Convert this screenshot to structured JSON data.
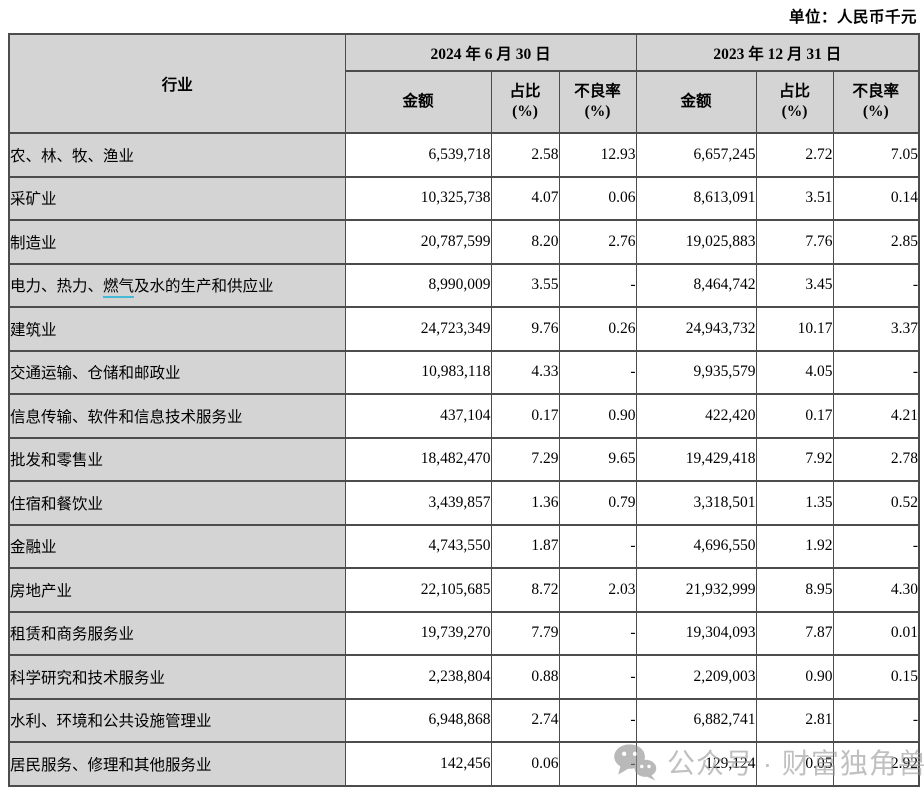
{
  "unit_label": "单位：人民币千元",
  "watermark": {
    "text": "公众号 · 财富独角兽",
    "icon": "wechat-icon",
    "color": "#9b9b9b"
  },
  "colors": {
    "header_bg": "#d4d4d4",
    "border": "#4c4c4c",
    "gas_underline": "#46b9d4"
  },
  "table": {
    "header": {
      "industry": "行业",
      "groups": [
        {
          "label": "2024 年 6 月 30 日",
          "columns": [
            {
              "title": "金额",
              "sub": ""
            },
            {
              "title": "占比",
              "sub": "(%)"
            },
            {
              "title": "不良率",
              "sub": "(%)"
            }
          ]
        },
        {
          "label": "2023 年 12 月 31 日",
          "columns": [
            {
              "title": "金额",
              "sub": ""
            },
            {
              "title": "占比",
              "sub": "(%)"
            },
            {
              "title": "不良率",
              "sub": "(%)"
            }
          ]
        }
      ]
    },
    "rows": [
      {
        "industry": "农、林、牧、渔业",
        "values": [
          "6,539,718",
          "2.58",
          "12.93",
          "6,657,245",
          "2.72",
          "7.05"
        ]
      },
      {
        "industry": "采矿业",
        "values": [
          "10,325,738",
          "4.07",
          "0.06",
          "8,613,091",
          "3.51",
          "0.14"
        ]
      },
      {
        "industry": "制造业",
        "values": [
          "20,787,599",
          "8.20",
          "2.76",
          "19,025,883",
          "7.76",
          "2.85"
        ]
      },
      {
        "industry": "电力、热力、燃气及水的生产和供应业",
        "parts": {
          "pre": "电力、热力、",
          "underlined": "燃气",
          "post": "及水的生产和供应业"
        },
        "values": [
          "8,990,009",
          "3.55",
          "-",
          "8,464,742",
          "3.45",
          "-"
        ]
      },
      {
        "industry": "建筑业",
        "values": [
          "24,723,349",
          "9.76",
          "0.26",
          "24,943,732",
          "10.17",
          "3.37"
        ]
      },
      {
        "industry": "交通运输、仓储和邮政业",
        "values": [
          "10,983,118",
          "4.33",
          "-",
          "9,935,579",
          "4.05",
          "-"
        ]
      },
      {
        "industry": "信息传输、软件和信息技术服务业",
        "values": [
          "437,104",
          "0.17",
          "0.90",
          "422,420",
          "0.17",
          "4.21"
        ]
      },
      {
        "industry": "批发和零售业",
        "values": [
          "18,482,470",
          "7.29",
          "9.65",
          "19,429,418",
          "7.92",
          "2.78"
        ]
      },
      {
        "industry": "住宿和餐饮业",
        "values": [
          "3,439,857",
          "1.36",
          "0.79",
          "3,318,501",
          "1.35",
          "0.52"
        ]
      },
      {
        "industry": "金融业",
        "values": [
          "4,743,550",
          "1.87",
          "-",
          "4,696,550",
          "1.92",
          "-"
        ]
      },
      {
        "industry": "房地产业",
        "values": [
          "22,105,685",
          "8.72",
          "2.03",
          "21,932,999",
          "8.95",
          "4.30"
        ]
      },
      {
        "industry": "租赁和商务服务业",
        "values": [
          "19,739,270",
          "7.79",
          "-",
          "19,304,093",
          "7.87",
          "0.01"
        ]
      },
      {
        "industry": "科学研究和技术服务业",
        "values": [
          "2,238,804",
          "0.88",
          "-",
          "2,209,003",
          "0.90",
          "0.15"
        ]
      },
      {
        "industry": "水利、环境和公共设施管理业",
        "values": [
          "6,948,868",
          "2.74",
          "-",
          "6,882,741",
          "2.81",
          "-"
        ]
      },
      {
        "industry": "居民服务、修理和其他服务业",
        "values": [
          "142,456",
          "0.06",
          "-",
          "129,124",
          "0.05",
          "2.92"
        ]
      }
    ]
  }
}
